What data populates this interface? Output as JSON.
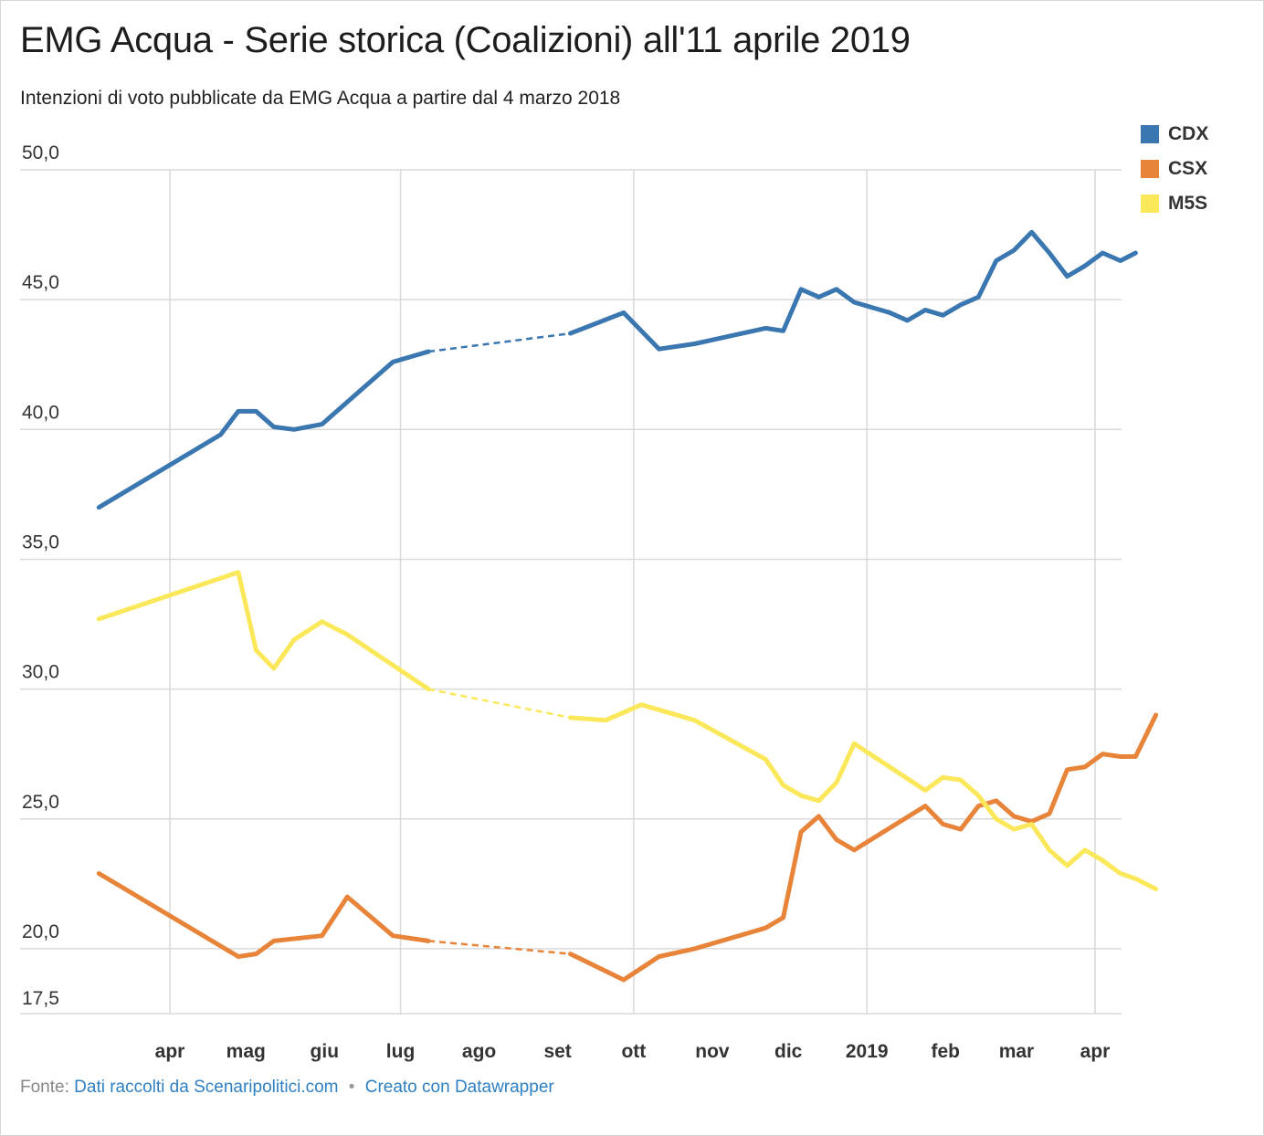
{
  "header": {
    "title": "EMG Acqua - Serie storica (Coalizioni) all'11 aprile 2019",
    "subtitle": "Intenzioni di voto pubblicate da EMG Acqua a partire dal 4 marzo 2018"
  },
  "footer": {
    "source_label": "Fonte:",
    "source_link": "Dati raccolti da Scenaripolitici.com",
    "separator": "•",
    "made_with": "Creato con Datawrapper"
  },
  "chart_data": {
    "type": "line",
    "ylim": [
      17.5,
      50.0
    ],
    "y_ticks": [
      "50,0",
      "45,0",
      "40,0",
      "35,0",
      "30,0",
      "25,0",
      "20,0",
      "17,5"
    ],
    "y_tick_values": [
      50,
      45,
      40,
      35,
      30,
      25,
      20,
      17.5
    ],
    "x_range": [
      "2018-03-04",
      "2019-04-11"
    ],
    "x_ticks": [
      {
        "label": "apr",
        "date": "2018-04-01"
      },
      {
        "label": "mag",
        "date": "2018-05-01"
      },
      {
        "label": "giu",
        "date": "2018-06-01"
      },
      {
        "label": "lug",
        "date": "2018-07-01"
      },
      {
        "label": "ago",
        "date": "2018-08-01"
      },
      {
        "label": "set",
        "date": "2018-09-01"
      },
      {
        "label": "ott",
        "date": "2018-10-01"
      },
      {
        "label": "nov",
        "date": "2018-11-01"
      },
      {
        "label": "dic",
        "date": "2018-12-01"
      },
      {
        "label": "2019",
        "date": "2019-01-01"
      },
      {
        "label": "feb",
        "date": "2019-02-01"
      },
      {
        "label": "mar",
        "date": "2019-03-01"
      },
      {
        "label": "apr",
        "date": "2019-04-01"
      }
    ],
    "x_gridlines": [
      "2018-04-01",
      "2018-07-01",
      "2018-10-01",
      "2019-01-01",
      "2019-04-01"
    ],
    "gap": {
      "from": "2018-07-12",
      "to": "2018-09-06"
    },
    "legend_position": "top-right",
    "series": [
      {
        "name": "CDX",
        "color": "#3a76b0",
        "points": [
          [
            "2018-03-04",
            37.0
          ],
          [
            "2018-04-21",
            39.8
          ],
          [
            "2018-04-28",
            40.7
          ],
          [
            "2018-05-05",
            40.7
          ],
          [
            "2018-05-12",
            40.1
          ],
          [
            "2018-05-20",
            40.0
          ],
          [
            "2018-05-31",
            40.2
          ],
          [
            "2018-06-28",
            42.6
          ],
          [
            "2018-07-12",
            43.0
          ],
          [
            "2018-09-06",
            43.7
          ],
          [
            "2018-09-27",
            44.5
          ],
          [
            "2018-10-11",
            43.1
          ],
          [
            "2018-10-25",
            43.3
          ],
          [
            "2018-11-22",
            43.9
          ],
          [
            "2018-11-29",
            43.8
          ],
          [
            "2018-12-06",
            45.4
          ],
          [
            "2018-12-13",
            45.1
          ],
          [
            "2018-12-20",
            45.4
          ],
          [
            "2018-12-27",
            44.9
          ],
          [
            "2019-01-10",
            44.5
          ],
          [
            "2019-01-17",
            44.2
          ],
          [
            "2019-01-24",
            44.6
          ],
          [
            "2019-01-31",
            44.4
          ],
          [
            "2019-02-07",
            44.8
          ],
          [
            "2019-02-14",
            45.1
          ],
          [
            "2019-02-21",
            46.5
          ],
          [
            "2019-02-28",
            46.9
          ],
          [
            "2019-03-07",
            47.6
          ],
          [
            "2019-03-14",
            46.8
          ],
          [
            "2019-03-21",
            45.9
          ],
          [
            "2019-03-28",
            46.3
          ],
          [
            "2019-04-04",
            46.8
          ],
          [
            "2019-04-11",
            46.5
          ],
          [
            "2019-04-17",
            46.8
          ]
        ]
      },
      {
        "name": "CSX",
        "color": "#e8843a",
        "points": [
          [
            "2018-03-04",
            22.9
          ],
          [
            "2018-04-28",
            19.7
          ],
          [
            "2018-05-05",
            19.8
          ],
          [
            "2018-05-12",
            20.3
          ],
          [
            "2018-05-31",
            20.5
          ],
          [
            "2018-06-10",
            22.0
          ],
          [
            "2018-06-28",
            20.5
          ],
          [
            "2018-07-12",
            20.3
          ],
          [
            "2018-09-06",
            19.8
          ],
          [
            "2018-09-27",
            18.8
          ],
          [
            "2018-10-11",
            19.7
          ],
          [
            "2018-10-25",
            20.0
          ],
          [
            "2018-11-22",
            20.8
          ],
          [
            "2018-11-29",
            21.2
          ],
          [
            "2018-12-06",
            24.5
          ],
          [
            "2018-12-13",
            25.1
          ],
          [
            "2018-12-20",
            24.2
          ],
          [
            "2018-12-27",
            23.8
          ],
          [
            "2019-01-24",
            25.5
          ],
          [
            "2019-01-31",
            24.8
          ],
          [
            "2019-02-07",
            24.6
          ],
          [
            "2019-02-14",
            25.5
          ],
          [
            "2019-02-21",
            25.7
          ],
          [
            "2019-02-28",
            25.1
          ],
          [
            "2019-03-07",
            24.9
          ],
          [
            "2019-03-14",
            25.2
          ],
          [
            "2019-03-21",
            26.9
          ],
          [
            "2019-03-28",
            27.0
          ],
          [
            "2019-04-04",
            27.5
          ],
          [
            "2019-04-11",
            27.4
          ],
          [
            "2019-04-17",
            27.4
          ],
          [
            "2019-04-25",
            29.0
          ]
        ]
      },
      {
        "name": "M5S",
        "color": "#fbe85a",
        "points": [
          [
            "2018-03-04",
            32.7
          ],
          [
            "2018-04-28",
            34.5
          ],
          [
            "2018-05-05",
            31.5
          ],
          [
            "2018-05-12",
            30.8
          ],
          [
            "2018-05-20",
            31.9
          ],
          [
            "2018-05-31",
            32.6
          ],
          [
            "2018-06-10",
            32.1
          ],
          [
            "2018-07-12",
            30.0
          ],
          [
            "2018-09-06",
            28.9
          ],
          [
            "2018-09-20",
            28.8
          ],
          [
            "2018-10-04",
            29.4
          ],
          [
            "2018-10-25",
            28.8
          ],
          [
            "2018-11-22",
            27.3
          ],
          [
            "2018-11-29",
            26.3
          ],
          [
            "2018-12-06",
            25.9
          ],
          [
            "2018-12-13",
            25.7
          ],
          [
            "2018-12-20",
            26.4
          ],
          [
            "2018-12-27",
            27.9
          ],
          [
            "2019-01-24",
            26.1
          ],
          [
            "2019-01-31",
            26.6
          ],
          [
            "2019-02-07",
            26.5
          ],
          [
            "2019-02-14",
            25.9
          ],
          [
            "2019-02-21",
            25.0
          ],
          [
            "2019-02-28",
            24.6
          ],
          [
            "2019-03-07",
            24.8
          ],
          [
            "2019-03-14",
            23.8
          ],
          [
            "2019-03-21",
            23.2
          ],
          [
            "2019-03-28",
            23.8
          ],
          [
            "2019-04-04",
            23.4
          ],
          [
            "2019-04-11",
            22.9
          ],
          [
            "2019-04-17",
            22.7
          ],
          [
            "2019-04-25",
            22.3
          ]
        ]
      }
    ]
  }
}
